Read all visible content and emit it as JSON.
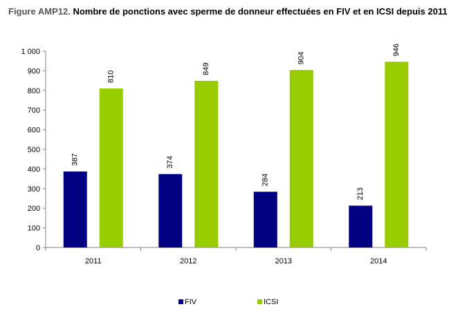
{
  "title_prefix": "Figure AMP12.",
  "title_main": "Nombre de ponctions avec sperme de donneur effectuées en FIV et en ICSI depuis 2011",
  "chart_data": {
    "type": "bar",
    "categories": [
      "2011",
      "2012",
      "2013",
      "2014"
    ],
    "series": [
      {
        "name": "FIV",
        "color": "#000080",
        "values": [
          387,
          374,
          284,
          213
        ]
      },
      {
        "name": "ICSI",
        "color": "#99CC00",
        "values": [
          810,
          849,
          904,
          946
        ]
      }
    ],
    "ylim": [
      0,
      1000
    ],
    "yticks": [
      0,
      100,
      200,
      300,
      400,
      500,
      600,
      700,
      800,
      900,
      1000
    ],
    "ytick_labels": [
      "0",
      "100",
      "200",
      "300",
      "400",
      "500",
      "600",
      "700",
      "800",
      "900",
      "1 000"
    ],
    "grid": false,
    "legend_position": "bottom"
  }
}
